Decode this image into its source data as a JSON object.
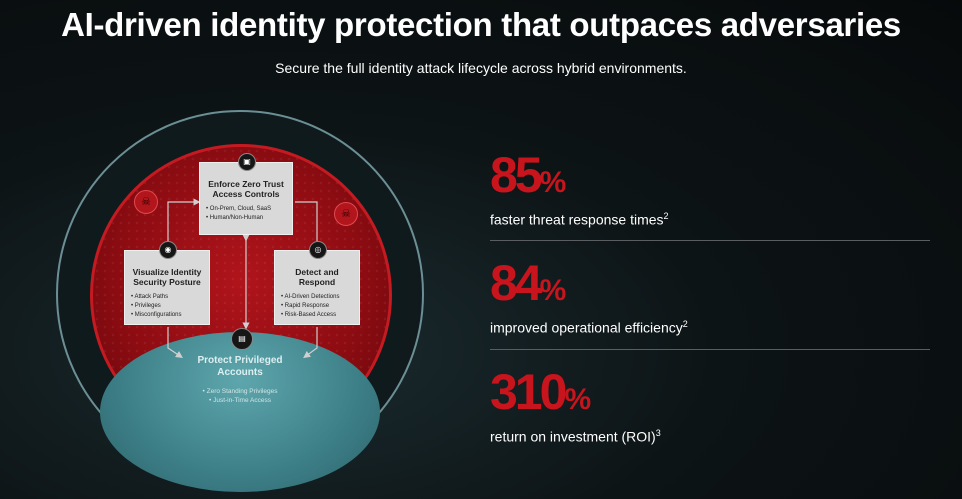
{
  "title": "AI-driven identity protection that outpaces adversaries",
  "subtitle": "Secure the full identity attack lifecycle across hybrid environments.",
  "diagram": {
    "box_top": {
      "icon": "lock-screen-icon",
      "title": "Enforce Zero Trust Access Controls",
      "items": [
        "On-Prem, Cloud, SaaS",
        "Human/Non-Human"
      ]
    },
    "box_left": {
      "icon": "eye-icon",
      "title": "Visualize Identity Security Posture",
      "items": [
        "Attack Paths",
        "Privileges",
        "Misconfigurations"
      ]
    },
    "box_right": {
      "icon": "fingerprint-icon",
      "title": "Detect and Respond",
      "items": [
        "AI-Driven Detections",
        "Rapid Response",
        "Risk-Based Access"
      ]
    },
    "bottom": {
      "icon": "id-card-icon",
      "title": "Protect Privileged Accounts",
      "items": [
        "Zero Standing Privileges",
        "Just-in-Time Access"
      ]
    }
  },
  "stats": [
    {
      "value": "85",
      "unit": "%",
      "label": "faster threat response times",
      "footnote": "2"
    },
    {
      "value": "84",
      "unit": "%",
      "label": "improved operational efficiency",
      "footnote": "2"
    },
    {
      "value": "310",
      "unit": "%",
      "label": "return on investment (ROI)",
      "footnote": "3"
    }
  ],
  "colors": {
    "accent": "#c8141c",
    "teal": "#3d7f87",
    "ring": "#6b8f95"
  }
}
